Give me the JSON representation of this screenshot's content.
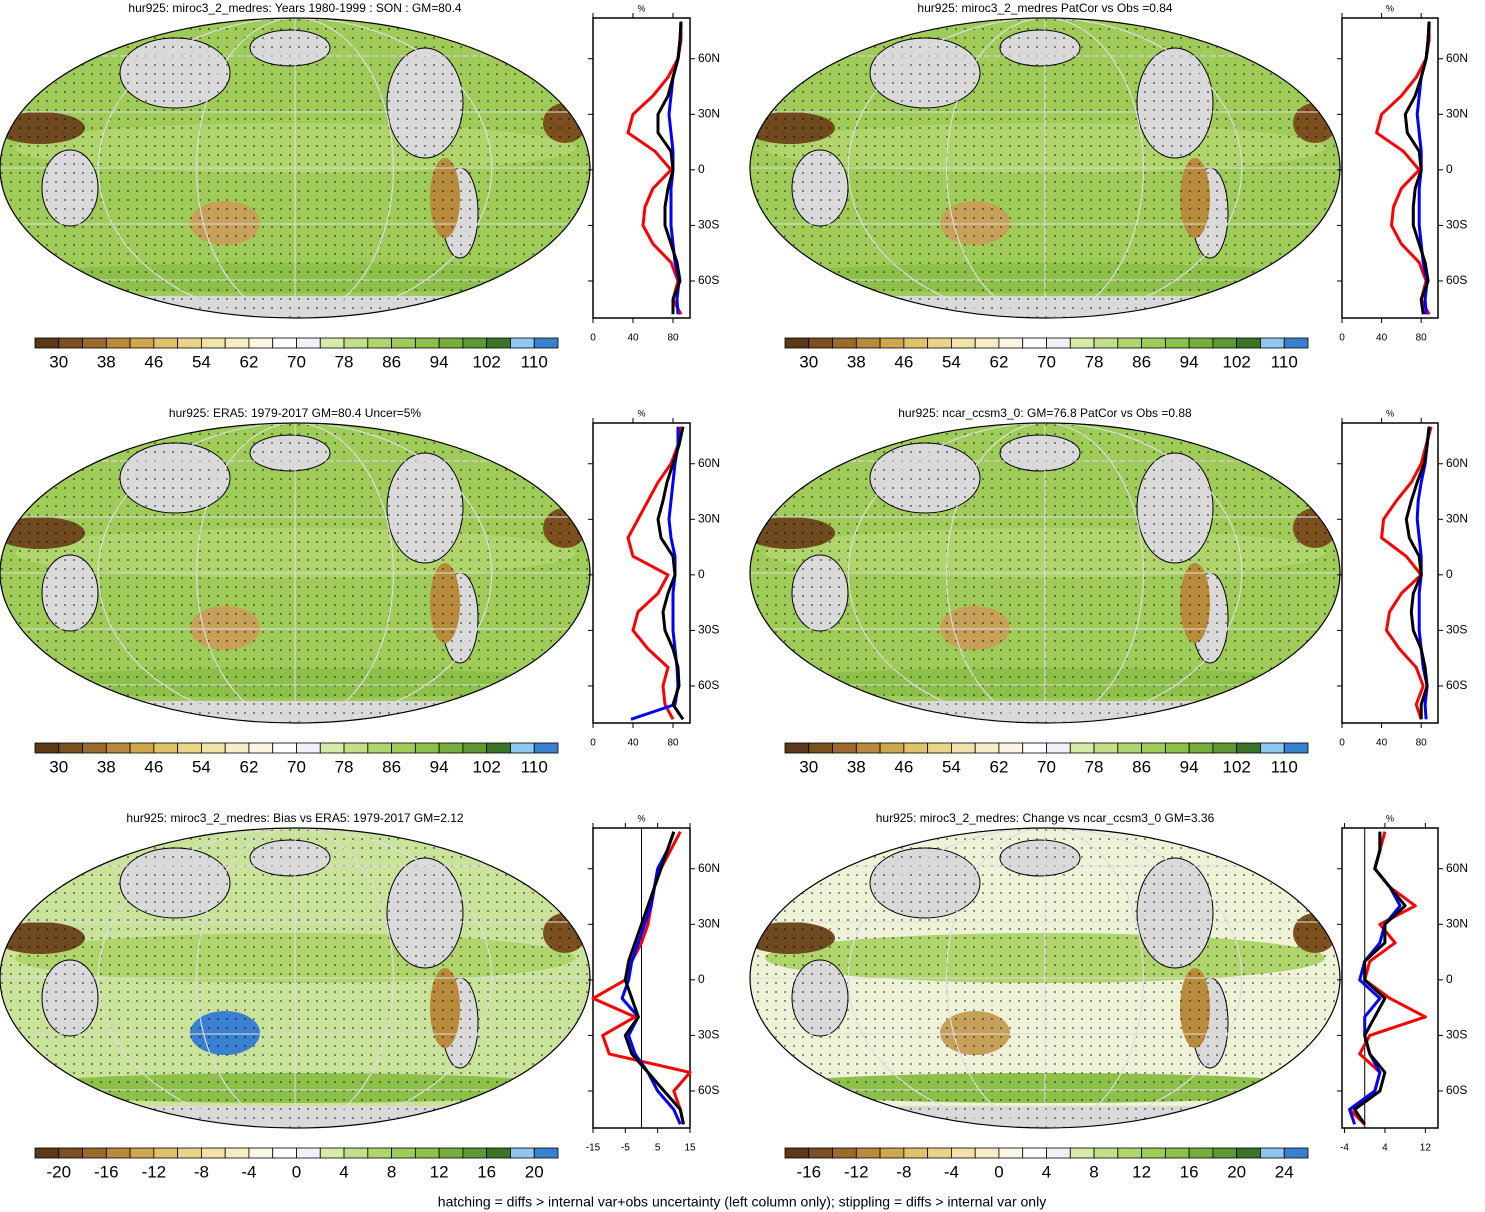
{
  "chart_data": [
    {
      "type": "map",
      "title": "hur925: miroc3_2_medres: Years 1980-1999 : SON : GM=80.4",
      "colorbar": {
        "ticks": [
          30,
          38,
          46,
          54,
          62,
          70,
          78,
          86,
          94,
          102,
          110
        ],
        "colors": [
          "#5a3a16",
          "#7b4f1e",
          "#9a6a2c",
          "#b88a3c",
          "#cfa64c",
          "#e0c26a",
          "#ead488",
          "#f1e3a8",
          "#f6edc6",
          "#faf6e4",
          "#ffffff",
          "#f0f0fa",
          "#d7eaa8",
          "#c3df88",
          "#b0d56c",
          "#9fcc58",
          "#8dc048",
          "#76ad3c",
          "#5e9832",
          "#3a7426",
          "#8ec8f0",
          "#3a80d0"
        ]
      }
    },
    {
      "type": "line",
      "xlabel": "%",
      "xlim": [
        0,
        97
      ],
      "xticks": [
        0,
        40,
        80
      ],
      "ylim": [
        -80,
        82
      ],
      "yticks": [
        {
          "value": 60,
          "label": "60N"
        },
        {
          "value": 30,
          "label": "30N"
        },
        0,
        {
          "value": -30,
          "label": "30S"
        },
        {
          "value": -60,
          "label": "60S"
        }
      ],
      "y": [
        80,
        70,
        60,
        50,
        40,
        30,
        20,
        10,
        0,
        -10,
        -20,
        -30,
        -40,
        -50,
        -60,
        -70,
        -78
      ],
      "series": [
        {
          "color": "#ff0000",
          "values": [
            88,
            88,
            85,
            75,
            60,
            40,
            35,
            62,
            78,
            60,
            52,
            50,
            60,
            78,
            85,
            80,
            88
          ]
        },
        {
          "color": "#0000ff",
          "values": [
            88,
            87,
            85,
            80,
            78,
            76,
            78,
            80,
            80,
            78,
            78,
            78,
            80,
            82,
            86,
            84,
            85
          ]
        },
        {
          "color": "#000000",
          "values": [
            88,
            87,
            85,
            80,
            75,
            65,
            65,
            78,
            80,
            75,
            72,
            72,
            78,
            84,
            87,
            80,
            80
          ]
        }
      ]
    },
    {
      "type": "map",
      "title": "hur925: miroc3_2_medres PatCor vs Obs =0.84",
      "colorbar": {
        "ticks": [
          30,
          38,
          46,
          54,
          62,
          70,
          78,
          86,
          94,
          102,
          110
        ],
        "colors": [
          "#5a3a16",
          "#7b4f1e",
          "#9a6a2c",
          "#b88a3c",
          "#cfa64c",
          "#e0c26a",
          "#ead488",
          "#f1e3a8",
          "#f6edc6",
          "#faf6e4",
          "#ffffff",
          "#f0f0fa",
          "#d7eaa8",
          "#c3df88",
          "#b0d56c",
          "#9fcc58",
          "#8dc048",
          "#76ad3c",
          "#5e9832",
          "#3a7426",
          "#8ec8f0",
          "#3a80d0"
        ]
      }
    },
    {
      "type": "line",
      "xlabel": "%",
      "xlim": [
        0,
        97
      ],
      "xticks": [
        0,
        40,
        80
      ],
      "ylim": [
        -80,
        82
      ],
      "yticks": [
        {
          "value": 60,
          "label": "60N"
        },
        {
          "value": 30,
          "label": "30N"
        },
        0,
        {
          "value": -30,
          "label": "30S"
        },
        {
          "value": -60,
          "label": "60S"
        }
      ],
      "y": [
        80,
        70,
        60,
        50,
        40,
        30,
        20,
        10,
        0,
        -10,
        -20,
        -30,
        -40,
        -50,
        -60,
        -70,
        -78
      ],
      "series": [
        {
          "color": "#ff0000",
          "values": [
            88,
            88,
            85,
            75,
            60,
            40,
            35,
            62,
            78,
            60,
            52,
            50,
            60,
            78,
            85,
            80,
            88
          ]
        },
        {
          "color": "#0000ff",
          "values": [
            88,
            87,
            85,
            80,
            78,
            76,
            78,
            80,
            80,
            78,
            78,
            78,
            80,
            82,
            86,
            84,
            85
          ]
        },
        {
          "color": "#000000",
          "values": [
            88,
            87,
            85,
            80,
            74,
            64,
            66,
            78,
            80,
            74,
            72,
            72,
            78,
            84,
            87,
            80,
            82
          ]
        }
      ]
    },
    {
      "type": "map",
      "title": "hur925: ERA5: 1979-2017 GM=80.4 Uncer=5%",
      "colorbar": {
        "ticks": [
          30,
          38,
          46,
          54,
          62,
          70,
          78,
          86,
          94,
          102,
          110
        ],
        "colors": [
          "#5a3a16",
          "#7b4f1e",
          "#9a6a2c",
          "#b88a3c",
          "#cfa64c",
          "#e0c26a",
          "#ead488",
          "#f1e3a8",
          "#f6edc6",
          "#faf6e4",
          "#ffffff",
          "#f0f0fa",
          "#d7eaa8",
          "#c3df88",
          "#b0d56c",
          "#9fcc58",
          "#8dc048",
          "#76ad3c",
          "#5e9832",
          "#3a7426",
          "#8ec8f0",
          "#3a80d0"
        ]
      }
    },
    {
      "type": "line",
      "xlabel": "%",
      "xlim": [
        0,
        97
      ],
      "xticks": [
        0,
        40,
        80
      ],
      "ylim": [
        -80,
        82
      ],
      "yticks": [
        {
          "value": 60,
          "label": "60N"
        },
        {
          "value": 30,
          "label": "30N"
        },
        0,
        {
          "value": -30,
          "label": "30S"
        },
        {
          "value": -60,
          "label": "60S"
        }
      ],
      "y": [
        80,
        70,
        60,
        50,
        40,
        30,
        20,
        10,
        0,
        -10,
        -20,
        -30,
        -40,
        -50,
        -60,
        -70,
        -78
      ],
      "series": [
        {
          "color": "#ff0000",
          "values": [
            88,
            85,
            78,
            65,
            55,
            45,
            35,
            40,
            75,
            65,
            45,
            40,
            55,
            75,
            70,
            72,
            80
          ]
        },
        {
          "color": "#0000ff",
          "values": [
            85,
            85,
            82,
            80,
            78,
            76,
            78,
            82,
            82,
            80,
            80,
            80,
            82,
            84,
            85,
            82,
            38
          ]
        },
        {
          "color": "#000000",
          "values": [
            90,
            86,
            80,
            74,
            70,
            65,
            68,
            80,
            82,
            75,
            70,
            72,
            80,
            85,
            86,
            80,
            90
          ]
        }
      ]
    },
    {
      "type": "map",
      "title": "hur925: ncar_ccsm3_0: GM=76.8 PatCor vs Obs =0.88",
      "colorbar": {
        "ticks": [
          30,
          38,
          46,
          54,
          62,
          70,
          78,
          86,
          94,
          102,
          110
        ],
        "colors": [
          "#5a3a16",
          "#7b4f1e",
          "#9a6a2c",
          "#b88a3c",
          "#cfa64c",
          "#e0c26a",
          "#ead488",
          "#f1e3a8",
          "#f6edc6",
          "#faf6e4",
          "#ffffff",
          "#f0f0fa",
          "#d7eaa8",
          "#c3df88",
          "#b0d56c",
          "#9fcc58",
          "#8dc048",
          "#76ad3c",
          "#5e9832",
          "#3a7426",
          "#8ec8f0",
          "#3a80d0"
        ]
      }
    },
    {
      "type": "line",
      "xlabel": "%",
      "xlim": [
        0,
        97
      ],
      "xticks": [
        0,
        40,
        80
      ],
      "ylim": [
        -80,
        82
      ],
      "yticks": [
        {
          "value": 60,
          "label": "60N"
        },
        {
          "value": 30,
          "label": "30N"
        },
        0,
        {
          "value": -30,
          "label": "30S"
        },
        {
          "value": -60,
          "label": "60S"
        }
      ],
      "y": [
        80,
        70,
        60,
        50,
        40,
        30,
        20,
        10,
        0,
        -10,
        -20,
        -30,
        -40,
        -50,
        -60,
        -70,
        -78
      ],
      "series": [
        {
          "color": "#ff0000",
          "values": [
            90,
            85,
            80,
            70,
            55,
            42,
            40,
            65,
            80,
            60,
            48,
            45,
            58,
            75,
            82,
            75,
            80
          ]
        },
        {
          "color": "#0000ff",
          "values": [
            88,
            86,
            84,
            80,
            77,
            76,
            78,
            80,
            80,
            78,
            78,
            78,
            80,
            82,
            86,
            84,
            85
          ]
        },
        {
          "color": "#000000",
          "values": [
            88,
            86,
            83,
            76,
            70,
            65,
            68,
            78,
            80,
            72,
            70,
            72,
            80,
            84,
            86,
            80,
            80
          ]
        }
      ]
    },
    {
      "type": "map",
      "title": "hur925: miroc3_2_medres: Bias vs ERA5: 1979-2017  GM=2.12",
      "colorbar": {
        "ticks": [
          -20,
          -16,
          -12,
          -8,
          -4,
          0,
          4,
          8,
          12,
          16,
          20
        ],
        "colors": [
          "#5a3a16",
          "#7b4f1e",
          "#9a6a2c",
          "#b88a3c",
          "#cfa64c",
          "#e0c26a",
          "#ead488",
          "#f1e3a8",
          "#f6edc6",
          "#faf6e4",
          "#ffffff",
          "#f0f0fa",
          "#d7eaa8",
          "#c3df88",
          "#b0d56c",
          "#9fcc58",
          "#8dc048",
          "#76ad3c",
          "#5e9832",
          "#3a7426",
          "#8ec8f0",
          "#3a80d0"
        ]
      }
    },
    {
      "type": "line",
      "xlabel": "%",
      "xlim": [
        -15,
        15
      ],
      "xticks": [
        -15,
        -5,
        5,
        15
      ],
      "ylim": [
        -80,
        82
      ],
      "zero_line": true,
      "yticks": [
        {
          "value": 60,
          "label": "60N"
        },
        {
          "value": 30,
          "label": "30N"
        },
        0,
        {
          "value": -30,
          "label": "30S"
        },
        {
          "value": -60,
          "label": "60S"
        }
      ],
      "y": [
        80,
        70,
        60,
        50,
        40,
        30,
        20,
        10,
        0,
        -10,
        -20,
        -30,
        -40,
        -50,
        -60,
        -70,
        -78
      ],
      "series": [
        {
          "color": "#ff0000",
          "values": [
            12,
            9,
            6,
            4,
            3,
            2,
            0,
            -3,
            -5,
            -15,
            -2,
            -12,
            -10,
            15,
            10,
            12,
            13
          ]
        },
        {
          "color": "#0000ff",
          "values": [
            10,
            8,
            5,
            4,
            3,
            1,
            -1,
            -3,
            -4,
            -6,
            -1,
            -4,
            -2,
            2,
            5,
            10,
            12
          ]
        },
        {
          "color": "#000000",
          "values": [
            10,
            8,
            6,
            4,
            2,
            0,
            -2,
            -4,
            -5,
            -3,
            -1,
            -5,
            -3,
            2,
            7,
            12,
            13
          ]
        }
      ]
    },
    {
      "type": "map",
      "title": "hur925: miroc3_2_medres: Change vs ncar_ccsm3_0 GM=3.36",
      "colorbar": {
        "ticks": [
          -16,
          -12,
          -8,
          -4,
          0,
          4,
          8,
          12,
          16,
          20,
          24
        ],
        "colors": [
          "#5a3a16",
          "#7b4f1e",
          "#9a6a2c",
          "#b88a3c",
          "#cfa64c",
          "#e0c26a",
          "#ead488",
          "#f1e3a8",
          "#f6edc6",
          "#faf6e4",
          "#ffffff",
          "#f0f0fa",
          "#d7eaa8",
          "#c3df88",
          "#b0d56c",
          "#9fcc58",
          "#8dc048",
          "#76ad3c",
          "#5e9832",
          "#3a7426",
          "#8ec8f0",
          "#3a80d0"
        ]
      }
    },
    {
      "type": "line",
      "xlabel": "%",
      "xlim": [
        -4.5,
        14.5
      ],
      "xticks": [
        -4,
        4,
        12
      ],
      "ylim": [
        -80,
        82
      ],
      "zero_line": true,
      "yticks": [
        {
          "value": 60,
          "label": "60N"
        },
        {
          "value": 30,
          "label": "30N"
        },
        0,
        {
          "value": -30,
          "label": "30S"
        },
        {
          "value": -60,
          "label": "60S"
        }
      ],
      "y": [
        80,
        70,
        60,
        50,
        40,
        30,
        20,
        10,
        0,
        -10,
        -20,
        -30,
        -40,
        -50,
        -60,
        -70,
        -78
      ],
      "series": [
        {
          "color": "#ff0000",
          "values": [
            4,
            3,
            2,
            5,
            10,
            3,
            6,
            1,
            0,
            5,
            12,
            1,
            -1,
            3,
            2,
            -3,
            0
          ]
        },
        {
          "color": "#0000ff",
          "values": [
            3,
            3,
            2,
            5,
            7,
            4,
            3,
            0,
            -1,
            3,
            0,
            0,
            1,
            3,
            2,
            -3,
            -2
          ]
        },
        {
          "color": "#000000",
          "values": [
            3,
            3,
            2,
            5,
            8,
            4,
            4,
            0,
            0,
            4,
            2,
            0,
            1,
            4,
            3,
            -2,
            0
          ]
        }
      ]
    }
  ],
  "footnote": "hatching = diffs > internal var+obs uncertainty (left column only); stippling = diffs > internal var only"
}
